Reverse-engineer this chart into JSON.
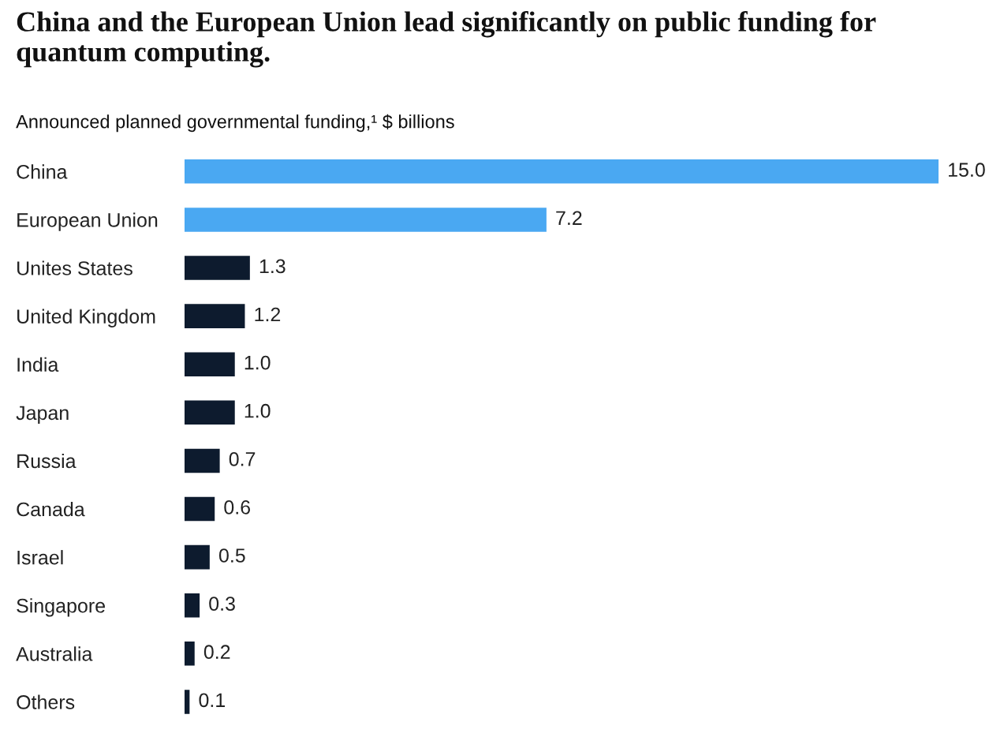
{
  "chart_data": {
    "type": "bar",
    "orientation": "horizontal",
    "title": "China and the European Union lead significantly on public funding for quantum computing.",
    "subtitle": "Announced planned governmental funding,¹ $ billions",
    "categories": [
      "China",
      "European Union",
      "Unites States",
      "United Kingdom",
      "India",
      "Japan",
      "Russia",
      "Canada",
      "Israel",
      "Singapore",
      "Australia",
      "Others"
    ],
    "values": [
      15.0,
      7.2,
      1.3,
      1.2,
      1.0,
      1.0,
      0.7,
      0.6,
      0.5,
      0.3,
      0.2,
      0.1
    ],
    "colors": [
      "#4aa8f2",
      "#4aa8f2",
      "#0d1b2e",
      "#0d1b2e",
      "#0d1b2e",
      "#0d1b2e",
      "#0d1b2e",
      "#0d1b2e",
      "#0d1b2e",
      "#0d1b2e",
      "#0d1b2e",
      "#0d1b2e"
    ],
    "value_labels": [
      "15.0",
      "7.2",
      "1.3",
      "1.2",
      "1.0",
      "1.0",
      "0.7",
      "0.6",
      "0.5",
      "0.3",
      "0.2",
      "0.1"
    ],
    "grid": false,
    "legend": false
  }
}
